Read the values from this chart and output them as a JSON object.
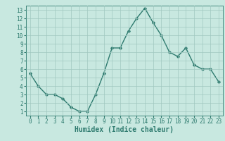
{
  "x": [
    0,
    1,
    2,
    3,
    4,
    5,
    6,
    7,
    8,
    9,
    10,
    11,
    12,
    13,
    14,
    15,
    16,
    17,
    18,
    19,
    20,
    21,
    22,
    23
  ],
  "y": [
    5.5,
    4.0,
    3.0,
    3.0,
    2.5,
    1.5,
    1.0,
    1.0,
    3.0,
    5.5,
    8.5,
    8.5,
    10.5,
    12.0,
    13.2,
    11.5,
    10.0,
    8.0,
    7.5,
    8.5,
    6.5,
    6.0,
    6.0,
    4.5
  ],
  "line_color": "#2d7a6e",
  "marker": "D",
  "marker_size": 1.8,
  "xlabel": "Humidex (Indice chaleur)",
  "xlim": [
    -0.5,
    23.5
  ],
  "ylim": [
    0.5,
    13.5
  ],
  "xticks": [
    0,
    1,
    2,
    3,
    4,
    5,
    6,
    7,
    8,
    9,
    10,
    11,
    12,
    13,
    14,
    15,
    16,
    17,
    18,
    19,
    20,
    21,
    22,
    23
  ],
  "yticks": [
    1,
    2,
    3,
    4,
    5,
    6,
    7,
    8,
    9,
    10,
    11,
    12,
    13
  ],
  "background_color": "#c8e8e0",
  "grid_color": "#a0c8c0",
  "tick_label_color": "#2d7a6e",
  "xlabel_color": "#2d7a6e",
  "xlabel_fontsize": 7,
  "tick_fontsize": 5.5,
  "linewidth": 1.0
}
